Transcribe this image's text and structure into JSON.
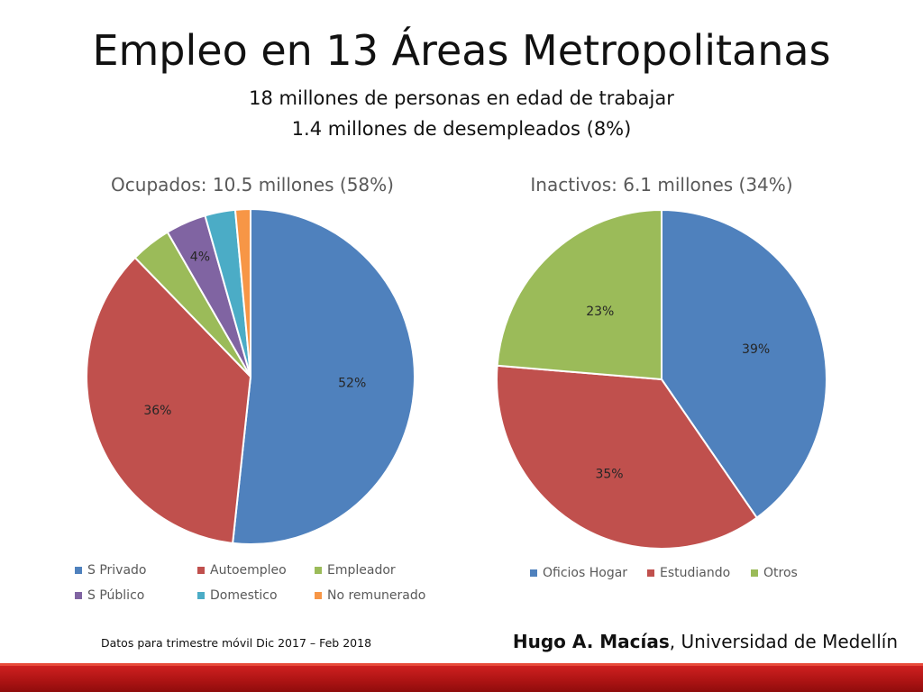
{
  "slide": {
    "title": "Empleo en 13 Áreas Metropolitanas",
    "subtitle_1": "18 millones de personas en edad de trabajar",
    "subtitle_2": "1.4 millones de desempleados (8%)",
    "footnote": "Datos para trimestre móvil Dic 2017 – Feb 2018",
    "author": "Hugo A. Macías",
    "affiliation": ", Universidad de Medellín"
  },
  "chart_data": [
    {
      "type": "pie",
      "title": "Ocupados: 10.5 millones (58%)",
      "categories": [
        "S Privado",
        "Autoempleo",
        "Empleador",
        "S Público",
        "Domestico",
        "No remunerado"
      ],
      "values": [
        52,
        36,
        4,
        4,
        3,
        1.5
      ],
      "data_labels": [
        "52%",
        "36%",
        "",
        "4%",
        "",
        ""
      ],
      "colors": [
        "#4f81bd",
        "#c0504d",
        "#9bbb59",
        "#8064a2",
        "#4bacc6",
        "#f79646"
      ],
      "legend_position": "bottom"
    },
    {
      "type": "pie",
      "title": "Inactivos: 6.1 millones (34%)",
      "categories": [
        "Oficios Hogar",
        "Estudiando",
        "Otros"
      ],
      "values": [
        39,
        35,
        23
      ],
      "data_labels": [
        "39%",
        "35%",
        "23%"
      ],
      "colors": [
        "#4f81bd",
        "#c0504d",
        "#9bbb59"
      ],
      "legend_position": "bottom"
    }
  ]
}
